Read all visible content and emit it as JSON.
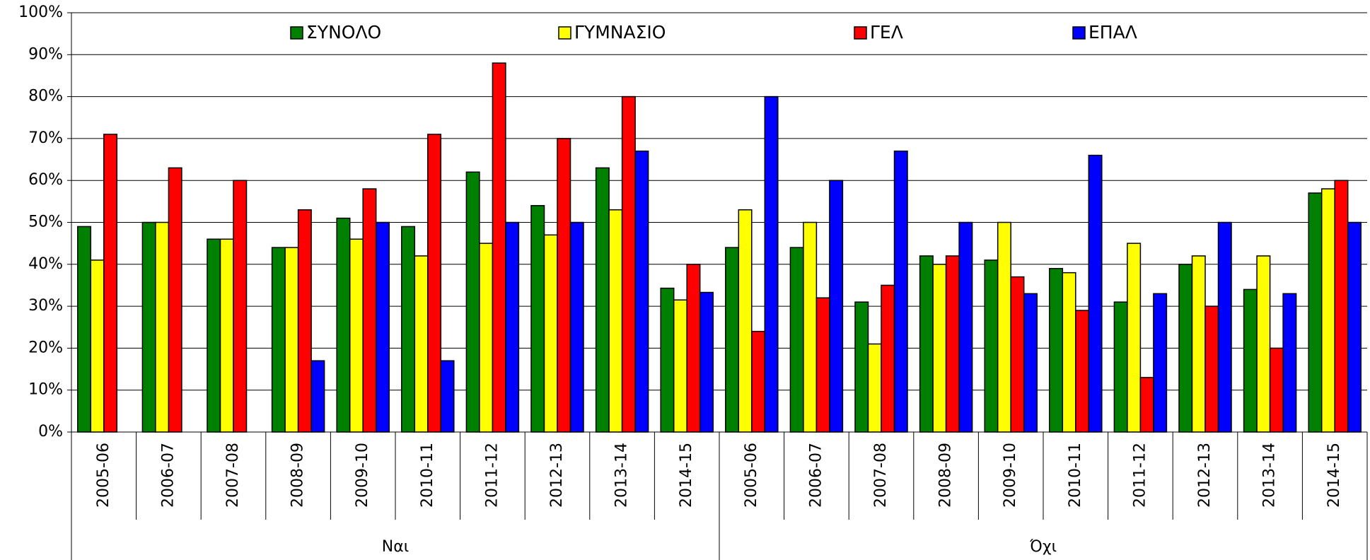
{
  "chart_data": {
    "type": "bar",
    "categories": [
      "2005-06",
      "2006-07",
      "2007-08",
      "2008-09",
      "2009-10",
      "2010-11",
      "2011-12",
      "2012-13",
      "2013-14",
      "2014-15",
      "2005-06",
      "2006-07",
      "2007-08",
      "2008-09",
      "2009-10",
      "2010-11",
      "2011-12",
      "2012-13",
      "2013-14",
      "2014-15"
    ],
    "group_labels": [
      "Ναι",
      "Όχι"
    ],
    "series": [
      {
        "name": "ΣΥΝΟΛΟ",
        "color": "#008000",
        "values": [
          49,
          50,
          46,
          44,
          51,
          49,
          62,
          54,
          63,
          34.3,
          44,
          44,
          31,
          42,
          41,
          39,
          31,
          40,
          34,
          57
        ]
      },
      {
        "name": "ΓΥΜΝΑΣΙΟ",
        "color": "#ffff00",
        "values": [
          41,
          50,
          46,
          44,
          46,
          42,
          45,
          47,
          53,
          31.5,
          53,
          50,
          21,
          40,
          50,
          38,
          45,
          42,
          42,
          58
        ]
      },
      {
        "name": "ΓΕΛ",
        "color": "#ff0000",
        "values": [
          71,
          63,
          60,
          53,
          58,
          71,
          88,
          70,
          80,
          40,
          24,
          32,
          35,
          42,
          37,
          29,
          13,
          30,
          20,
          60
        ]
      },
      {
        "name": "ΕΠΑΛ",
        "color": "#0000ff",
        "values": [
          null,
          null,
          null,
          17,
          50,
          17,
          50,
          50,
          67,
          33.3,
          80,
          60,
          67,
          50,
          33,
          66,
          33,
          50,
          33,
          50
        ]
      }
    ],
    "ylim": [
      0,
      100
    ],
    "yticks": [
      {
        "value": 0,
        "label": "0%"
      },
      {
        "value": 10,
        "label": "10%"
      },
      {
        "value": 20,
        "label": "20%"
      },
      {
        "value": 30,
        "label": "30%"
      },
      {
        "value": 40,
        "label": "40%"
      },
      {
        "value": 50,
        "label": "50%"
      },
      {
        "value": 60,
        "label": "60%"
      },
      {
        "value": 70,
        "label": "70%"
      },
      {
        "value": 80,
        "label": "80%"
      },
      {
        "value": 90,
        "label": "90%"
      },
      {
        "value": 100,
        "label": "100%"
      }
    ],
    "grid": true,
    "legend": "top"
  }
}
